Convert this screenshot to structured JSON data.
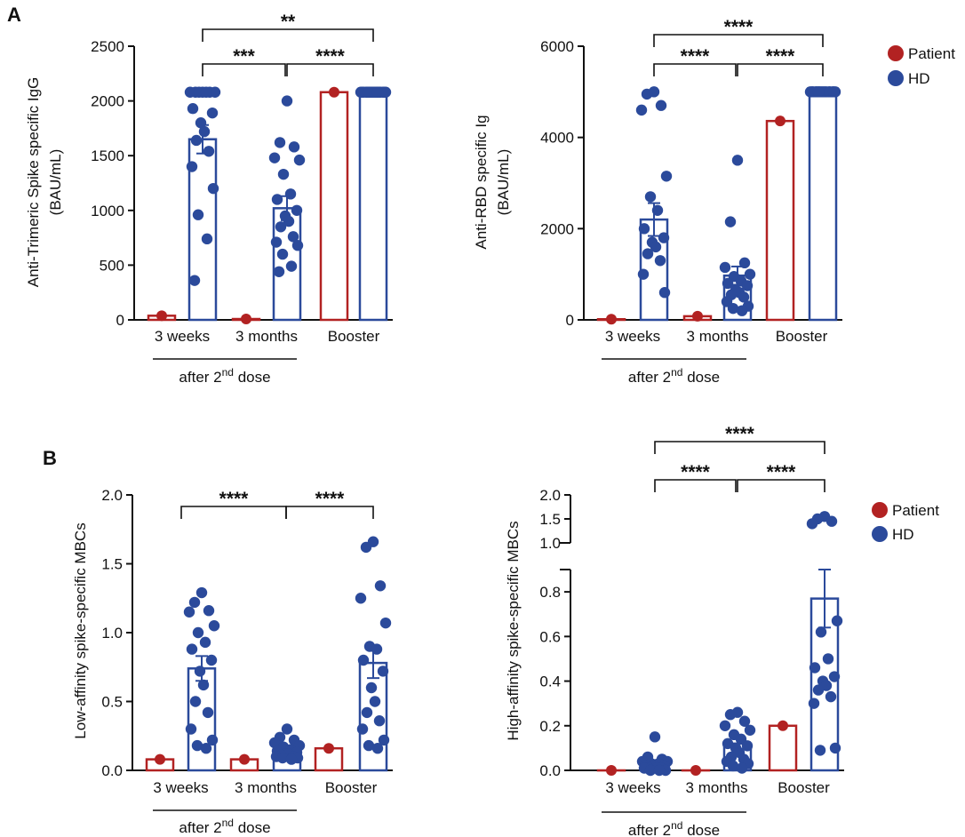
{
  "colors": {
    "patient": "#b22222",
    "hd": "#2b4a9b"
  },
  "panels": [
    {
      "label": "A"
    },
    {
      "label": "B"
    }
  ],
  "legend": {
    "patient": "Patient",
    "hd": "HD"
  },
  "chart_data": [
    {
      "type": "bar",
      "title": "",
      "ylabel": "Anti-Trimeric Spike specific IgG (BAU/mL)",
      "ylabel_lines": [
        "Anti-Trimeric Spike specific IgG",
        "(BAU/mL)"
      ],
      "ylim": [
        0,
        2500
      ],
      "yticks": [
        0,
        500,
        1000,
        1500,
        2000,
        2500
      ],
      "tick_labels": [
        "0",
        "500",
        "1000",
        "1500",
        "2000",
        "2500"
      ],
      "categories": [
        "3 weeks",
        "3 months",
        "Booster"
      ],
      "group_note": {
        "pre": "after 2",
        "sup": "nd",
        "post": " dose"
      },
      "series": [
        {
          "name": "Patient",
          "values": [
            38,
            8,
            2080
          ]
        },
        {
          "name": "HD",
          "values": [
            1650,
            1020,
            2080
          ],
          "sem": [
            130,
            110,
            0
          ],
          "points": [
            [
              2080,
              2080,
              2080,
              2080,
              2080,
              2080,
              2080,
              1930,
              1890,
              1800,
              1720,
              1640,
              1540,
              1400,
              1200,
              960,
              740,
              360
            ],
            [
              2000,
              1620,
              1580,
              1480,
              1460,
              1330,
              1150,
              1100,
              1000,
              950,
              900,
              850,
              760,
              710,
              680,
              600,
              490,
              440
            ],
            [
              2080,
              2080,
              2080,
              2080,
              2080,
              2080,
              2080,
              2080,
              2080,
              2080,
              2080,
              2080,
              2080,
              2080,
              2080,
              2080,
              2080
            ]
          ]
        }
      ],
      "significance": [
        {
          "from": 0,
          "to": 2,
          "label": "**"
        },
        {
          "from": 0,
          "to": 1,
          "label": "***"
        },
        {
          "from": 1,
          "to": 2,
          "label": "****"
        }
      ]
    },
    {
      "type": "bar",
      "title": "",
      "ylabel": "Anti-RBD specific Ig (BAU/mL)",
      "ylabel_lines": [
        "Anti-RBD specific Ig",
        "(BAU/mL)"
      ],
      "ylim": [
        0,
        6000
      ],
      "yticks": [
        0,
        2000,
        4000,
        6000
      ],
      "tick_labels": [
        "0",
        "2000",
        "4000",
        "6000"
      ],
      "categories": [
        "3 weeks",
        "3 months",
        "Booster"
      ],
      "group_note": {
        "pre": "after 2",
        "sup": "nd",
        "post": " dose"
      },
      "series": [
        {
          "name": "Patient",
          "values": [
            15,
            80,
            4360
          ]
        },
        {
          "name": "HD",
          "values": [
            2200,
            970,
            5000
          ],
          "sem": [
            360,
            200,
            0
          ],
          "points": [
            [
              5000,
              4950,
              4700,
              4600,
              3150,
              2700,
              2400,
              2000,
              1800,
              1700,
              1600,
              1450,
              1300,
              1000,
              600
            ],
            [
              3500,
              2150,
              1250,
              1150,
              1000,
              950,
              850,
              800,
              750,
              650,
              600,
              550,
              500,
              400,
              300,
              250,
              200
            ],
            [
              5000,
              5000,
              5000,
              5000,
              5000,
              5000,
              5000,
              5000,
              5000,
              5000,
              5000,
              5000,
              5000,
              5000,
              5000,
              5000
            ]
          ]
        }
      ],
      "significance": [
        {
          "from": 0,
          "to": 2,
          "label": "****"
        },
        {
          "from": 0,
          "to": 1,
          "label": "****"
        },
        {
          "from": 1,
          "to": 2,
          "label": "****"
        }
      ]
    },
    {
      "type": "bar",
      "title": "",
      "ylabel": "Low-affinity spike-specific MBCs",
      "ylabel_lines": [
        "Low-affinity spike-specific MBCs"
      ],
      "ylim": [
        0,
        2.0
      ],
      "yticks": [
        0,
        0.5,
        1.0,
        1.5,
        2.0
      ],
      "tick_labels": [
        "0.0",
        "0.5",
        "1.0",
        "1.5",
        "2.0"
      ],
      "categories": [
        "3 weeks",
        "3 months",
        "Booster"
      ],
      "group_note": {
        "pre": "after 2",
        "sup": "nd",
        "post": " dose"
      },
      "series": [
        {
          "name": "Patient",
          "values": [
            0.08,
            0.08,
            0.16
          ]
        },
        {
          "name": "HD",
          "values": [
            0.74,
            0.13,
            0.78
          ],
          "sem": [
            0.09,
            0.02,
            0.11
          ],
          "points": [
            [
              1.29,
              1.22,
              1.16,
              1.15,
              1.05,
              1.0,
              0.93,
              0.88,
              0.8,
              0.72,
              0.62,
              0.5,
              0.42,
              0.3,
              0.22,
              0.18,
              0.16
            ],
            [
              0.3,
              0.24,
              0.22,
              0.2,
              0.18,
              0.17,
              0.15,
              0.14,
              0.13,
              0.12,
              0.12,
              0.11,
              0.1,
              0.1,
              0.09,
              0.09,
              0.08
            ],
            [
              1.66,
              1.62,
              1.34,
              1.25,
              1.07,
              0.9,
              0.88,
              0.8,
              0.72,
              0.6,
              0.5,
              0.42,
              0.36,
              0.3,
              0.22,
              0.18,
              0.16
            ]
          ]
        }
      ],
      "significance": [
        {
          "from": 0.72,
          "to": 1.5,
          "label": "****"
        },
        {
          "from": 1.5,
          "to": 2.2,
          "label": "****"
        }
      ]
    },
    {
      "type": "bar",
      "title": "",
      "ylabel": "High-affinity spike-specific MBCs",
      "ylabel_lines": [
        "High-affinity spike-specific MBCs"
      ],
      "ylim": [
        0,
        2.0
      ],
      "broken_axis": {
        "lower": [
          0,
          0.9
        ],
        "upper": [
          1.0,
          2.0
        ]
      },
      "yticks": [
        0,
        0.2,
        0.4,
        0.6,
        0.8,
        1.0,
        1.5,
        2.0
      ],
      "tick_labels": [
        "0.0",
        "0.2",
        "0.4",
        "0.6",
        "0.8",
        "1.0",
        "1.5",
        "2.0"
      ],
      "categories": [
        "3 weeks",
        "3 months",
        "Booster"
      ],
      "group_note": {
        "pre": "after 2",
        "sup": "nd",
        "post": " dose"
      },
      "series": [
        {
          "name": "Patient",
          "values": [
            0.0,
            0.0,
            0.2
          ]
        },
        {
          "name": "HD",
          "values": [
            0.02,
            0.12,
            0.77
          ],
          "sem": [
            0.01,
            0.025,
            0.13
          ],
          "points": [
            [
              0.15,
              0.06,
              0.05,
              0.04,
              0.04,
              0.03,
              0.03,
              0.02,
              0.02,
              0.02,
              0.01,
              0.01,
              0.01,
              0.01,
              0.0,
              0.0,
              0.0
            ],
            [
              0.26,
              0.25,
              0.22,
              0.2,
              0.18,
              0.16,
              0.14,
              0.12,
              0.11,
              0.1,
              0.08,
              0.06,
              0.05,
              0.04,
              0.03,
              0.02,
              0.01
            ],
            [
              1.55,
              1.5,
              1.45,
              1.4,
              0.67,
              0.62,
              0.5,
              0.46,
              0.42,
              0.4,
              0.38,
              0.36,
              0.33,
              0.3,
              0.1,
              0.09
            ]
          ]
        }
      ],
      "significance": [
        {
          "from": 0,
          "to": 2,
          "label": "****"
        },
        {
          "from": 0,
          "to": 1,
          "label": "****"
        },
        {
          "from": 1,
          "to": 2,
          "label": "****"
        }
      ]
    }
  ]
}
